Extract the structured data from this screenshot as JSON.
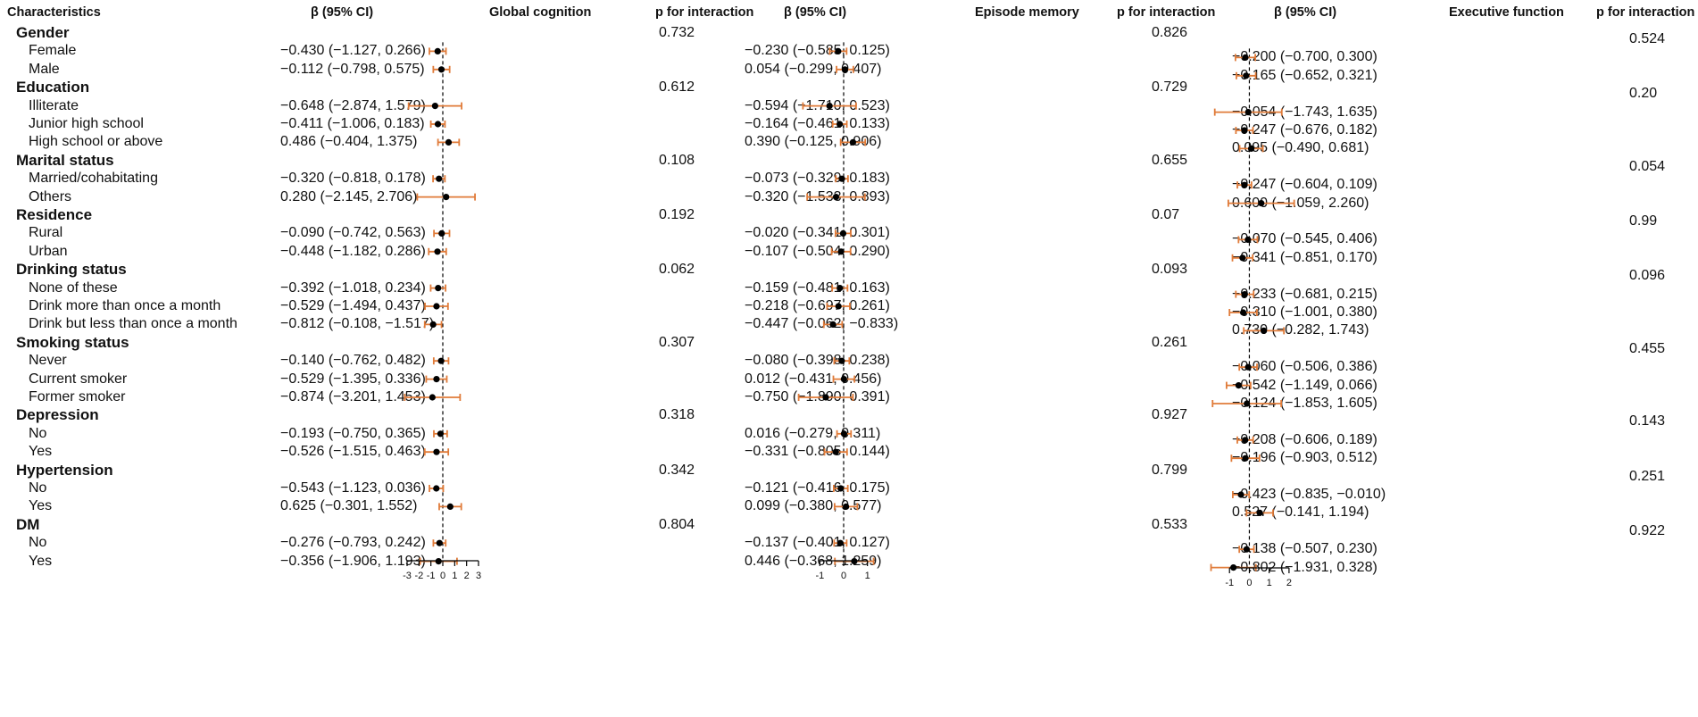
{
  "headers": {
    "characteristics": "Characteristics",
    "beta": "β (95% CI)",
    "p": "p for interaction",
    "panels": [
      "Global cognition",
      "Episode memory",
      "Executive function"
    ]
  },
  "rows": [
    {
      "label": "Gender",
      "type": "group"
    },
    {
      "label": "Female",
      "type": "item"
    },
    {
      "label": "Male",
      "type": "item"
    },
    {
      "label": "Education",
      "type": "group"
    },
    {
      "label": "Illiterate",
      "type": "item"
    },
    {
      "label": "Junior high school",
      "type": "item"
    },
    {
      "label": "High school or above",
      "type": "item"
    },
    {
      "label": "Marital status",
      "type": "group"
    },
    {
      "label": "Married/cohabitating",
      "type": "item"
    },
    {
      "label": "Others",
      "type": "item"
    },
    {
      "label": "Residence",
      "type": "group"
    },
    {
      "label": "Rural",
      "type": "item"
    },
    {
      "label": "Urban",
      "type": "item"
    },
    {
      "label": "Drinking status",
      "type": "group"
    },
    {
      "label": "None of these",
      "type": "item"
    },
    {
      "label": "Drink more than once a month",
      "type": "item"
    },
    {
      "label": "Drink but less than once a month",
      "type": "item"
    },
    {
      "label": "Smoking status",
      "type": "group"
    },
    {
      "label": "Never",
      "type": "item"
    },
    {
      "label": "Current smoker",
      "type": "item"
    },
    {
      "label": "Former smoker",
      "type": "item"
    },
    {
      "label": "Depression",
      "type": "group"
    },
    {
      "label": "No",
      "type": "item"
    },
    {
      "label": "Yes",
      "type": "item"
    },
    {
      "label": "Hypertension",
      "type": "group"
    },
    {
      "label": "No",
      "type": "item"
    },
    {
      "label": "Yes",
      "type": "item"
    },
    {
      "label": "DM",
      "type": "group"
    },
    {
      "label": "No",
      "type": "item"
    },
    {
      "label": "Yes",
      "type": "item"
    }
  ],
  "chart_data": [
    {
      "type": "forest",
      "title": "Global cognition",
      "xlim": [
        -3,
        3
      ],
      "ticks": [
        "-3",
        "-2",
        "-1",
        "0",
        "1",
        "2",
        "3"
      ],
      "reference_line": 0,
      "p_values": [
        "0.732",
        "0.612",
        "0.108",
        "0.192",
        "0.062",
        "0.307",
        "0.318",
        "0.342",
        "0.804"
      ],
      "points": [
        {
          "row": 1,
          "est": -0.43,
          "lo": -1.127,
          "hi": 0.266,
          "text": "−0.430 (−1.127, 0.266)"
        },
        {
          "row": 2,
          "est": -0.112,
          "lo": -0.798,
          "hi": 0.575,
          "text": "−0.112 (−0.798, 0.575)"
        },
        {
          "row": 4,
          "est": -0.648,
          "lo": -2.874,
          "hi": 1.579,
          "text": "−0.648 (−2.874, 1.579)"
        },
        {
          "row": 5,
          "est": -0.411,
          "lo": -1.006,
          "hi": 0.183,
          "text": "−0.411 (−1.006, 0.183)"
        },
        {
          "row": 6,
          "est": 0.486,
          "lo": -0.404,
          "hi": 1.375,
          "text": "0.486 (−0.404, 1.375)"
        },
        {
          "row": 8,
          "est": -0.32,
          "lo": -0.818,
          "hi": 0.178,
          "text": "−0.320 (−0.818, 0.178)"
        },
        {
          "row": 9,
          "est": 0.28,
          "lo": -2.145,
          "hi": 2.706,
          "text": "0.280 (−2.145, 2.706)"
        },
        {
          "row": 11,
          "est": -0.09,
          "lo": -0.742,
          "hi": 0.563,
          "text": "−0.090 (−0.742, 0.563)"
        },
        {
          "row": 12,
          "est": -0.448,
          "lo": -1.182,
          "hi": 0.286,
          "text": "−0.448 (−1.182, 0.286)"
        },
        {
          "row": 14,
          "est": -0.392,
          "lo": -1.018,
          "hi": 0.234,
          "text": "−0.392 (−1.018, 0.234)"
        },
        {
          "row": 15,
          "est": -0.529,
          "lo": -1.494,
          "hi": 0.437,
          "text": "−0.529 (−1.494, 0.437)"
        },
        {
          "row": 16,
          "est": -0.812,
          "lo": -1.517,
          "hi": -0.108,
          "text": "−0.812 (−0.108, −1.517)"
        },
        {
          "row": 18,
          "est": -0.14,
          "lo": -0.762,
          "hi": 0.482,
          "text": "−0.140 (−0.762, 0.482)"
        },
        {
          "row": 19,
          "est": -0.529,
          "lo": -1.395,
          "hi": 0.336,
          "text": "−0.529 (−1.395, 0.336)"
        },
        {
          "row": 20,
          "est": -0.874,
          "lo": -3.201,
          "hi": 1.453,
          "text": "−0.874 (−3.201, 1.453)"
        },
        {
          "row": 22,
          "est": -0.193,
          "lo": -0.75,
          "hi": 0.365,
          "text": "−0.193 (−0.750, 0.365)"
        },
        {
          "row": 23,
          "est": -0.526,
          "lo": -1.515,
          "hi": 0.463,
          "text": "−0.526 (−1.515, 0.463)"
        },
        {
          "row": 25,
          "est": -0.543,
          "lo": -1.123,
          "hi": 0.036,
          "text": "−0.543 (−1.123, 0.036)"
        },
        {
          "row": 26,
          "est": 0.625,
          "lo": -0.301,
          "hi": 1.552,
          "text": "0.625 (−0.301, 1.552)"
        },
        {
          "row": 28,
          "est": -0.276,
          "lo": -0.793,
          "hi": 0.242,
          "text": "−0.276 (−0.793, 0.242)"
        },
        {
          "row": 29,
          "est": -0.356,
          "lo": -1.906,
          "hi": 1.193,
          "text": "−0.356 (−1.906, 1.193)"
        }
      ]
    },
    {
      "type": "forest",
      "title": "Episode memory",
      "xlim": [
        -1.5,
        1.5
      ],
      "ticks": [
        "-1",
        "0",
        "1"
      ],
      "reference_line": 0,
      "p_values": [
        "0.826",
        "0.729",
        "0.655",
        "0.07",
        "0.093",
        "0.261",
        "0.927",
        "0.799",
        "0.533"
      ],
      "points": [
        {
          "row": 1,
          "est": -0.23,
          "lo": -0.585,
          "hi": 0.125,
          "text": "−0.230 (−0.585, 0.125)"
        },
        {
          "row": 2,
          "est": 0.054,
          "lo": -0.299,
          "hi": 0.407,
          "text": "0.054 (−0.299, 0.407)"
        },
        {
          "row": 4,
          "est": -0.594,
          "lo": -1.71,
          "hi": 0.523,
          "text": "−0.594 (−1.710, 0.523)"
        },
        {
          "row": 5,
          "est": -0.164,
          "lo": -0.461,
          "hi": 0.133,
          "text": "−0.164 (−0.461, 0.133)"
        },
        {
          "row": 6,
          "est": 0.39,
          "lo": -0.125,
          "hi": 0.906,
          "text": "0.390 (−0.125, 0.906)"
        },
        {
          "row": 8,
          "est": -0.073,
          "lo": -0.329,
          "hi": 0.183,
          "text": "−0.073 (−0.329, 0.183)"
        },
        {
          "row": 9,
          "est": -0.32,
          "lo": -1.533,
          "hi": 0.893,
          "text": "−0.320 (−1.533, 0.893)"
        },
        {
          "row": 11,
          "est": -0.02,
          "lo": -0.341,
          "hi": 0.301,
          "text": "−0.020 (−0.341, 0.301)"
        },
        {
          "row": 12,
          "est": -0.107,
          "lo": -0.504,
          "hi": 0.29,
          "text": "−0.107 (−0.504, 0.290)"
        },
        {
          "row": 14,
          "est": -0.159,
          "lo": -0.481,
          "hi": 0.163,
          "text": "−0.159 (−0.481, 0.163)"
        },
        {
          "row": 15,
          "est": -0.218,
          "lo": -0.697,
          "hi": 0.261,
          "text": "−0.218 (−0.697, 0.261)"
        },
        {
          "row": 16,
          "est": -0.447,
          "lo": -0.833,
          "hi": -0.062,
          "text": "−0.447 (−0.062, −0.833)"
        },
        {
          "row": 18,
          "est": -0.08,
          "lo": -0.398,
          "hi": 0.238,
          "text": "−0.080 (−0.398, 0.238)"
        },
        {
          "row": 19,
          "est": 0.012,
          "lo": -0.431,
          "hi": 0.456,
          "text": "0.012 (−0.431, 0.456)"
        },
        {
          "row": 20,
          "est": -0.75,
          "lo": -1.89,
          "hi": 0.391,
          "text": "−0.750 (−1.890, 0.391)"
        },
        {
          "row": 22,
          "est": 0.016,
          "lo": -0.279,
          "hi": 0.311,
          "text": "0.016 (−0.279, 0.311)"
        },
        {
          "row": 23,
          "est": -0.331,
          "lo": -0.805,
          "hi": 0.144,
          "text": "−0.331 (−0.805, 0.144)"
        },
        {
          "row": 25,
          "est": -0.121,
          "lo": -0.416,
          "hi": 0.175,
          "text": "−0.121 (−0.416, 0.175)"
        },
        {
          "row": 26,
          "est": 0.099,
          "lo": -0.38,
          "hi": 0.577,
          "text": "0.099 (−0.380, 0.577)"
        },
        {
          "row": 28,
          "est": -0.137,
          "lo": -0.401,
          "hi": 0.127,
          "text": "−0.137 (−0.401, 0.127)"
        },
        {
          "row": 29,
          "est": 0.446,
          "lo": -0.368,
          "hi": 1.259,
          "text": "0.446 (−0.368, 1.259)"
        }
      ]
    },
    {
      "type": "forest",
      "title": "Executive function",
      "xlim": [
        -2,
        2.5
      ],
      "ticks": [
        "-1",
        "0",
        "1",
        "2"
      ],
      "reference_line": 0,
      "p_values": [
        "0.524",
        "0.20",
        "0.054",
        "0.99",
        "0.096",
        "0.455",
        "0.143",
        "0.251",
        "0.922"
      ],
      "points": [
        {
          "row": 1,
          "est": -0.2,
          "lo": -0.7,
          "hi": 0.3,
          "text": "−0.200 (−0.700, 0.300)"
        },
        {
          "row": 2,
          "est": -0.165,
          "lo": -0.652,
          "hi": 0.321,
          "text": "−0.165 (−0.652, 0.321)"
        },
        {
          "row": 4,
          "est": -0.054,
          "lo": -1.743,
          "hi": 1.635,
          "text": "−0.054 (−1.743, 1.635)"
        },
        {
          "row": 5,
          "est": -0.247,
          "lo": -0.676,
          "hi": 0.182,
          "text": "−0.247 (−0.676, 0.182)"
        },
        {
          "row": 6,
          "est": 0.095,
          "lo": -0.49,
          "hi": 0.681,
          "text": "0.095 (−0.490, 0.681)"
        },
        {
          "row": 8,
          "est": -0.247,
          "lo": -0.604,
          "hi": 0.109,
          "text": "−0.247 (−0.604, 0.109)"
        },
        {
          "row": 9,
          "est": 0.6,
          "lo": -1.059,
          "hi": 2.26,
          "text": "0.600 (−1.059, 2.260)"
        },
        {
          "row": 11,
          "est": -0.07,
          "lo": -0.545,
          "hi": 0.406,
          "text": "−0.070 (−0.545, 0.406)"
        },
        {
          "row": 12,
          "est": -0.341,
          "lo": -0.851,
          "hi": 0.17,
          "text": "−0.341 (−0.851, 0.170)"
        },
        {
          "row": 14,
          "est": -0.233,
          "lo": -0.681,
          "hi": 0.215,
          "text": "−0.233 (−0.681, 0.215)"
        },
        {
          "row": 15,
          "est": -0.31,
          "lo": -1.001,
          "hi": 0.38,
          "text": "−0.310 (−1.001, 0.380)"
        },
        {
          "row": 16,
          "est": 0.73,
          "lo": -0.282,
          "hi": 1.743,
          "text": "0.730 (−0.282, 1.743)"
        },
        {
          "row": 18,
          "est": -0.06,
          "lo": -0.506,
          "hi": 0.386,
          "text": "−0.060 (−0.506, 0.386)"
        },
        {
          "row": 19,
          "est": -0.542,
          "lo": -1.149,
          "hi": 0.066,
          "text": "−0.542 (−1.149, 0.066)"
        },
        {
          "row": 20,
          "est": -0.124,
          "lo": -1.853,
          "hi": 1.605,
          "text": "−0.124 (−1.853, 1.605)"
        },
        {
          "row": 22,
          "est": -0.208,
          "lo": -0.606,
          "hi": 0.189,
          "text": "−0.208 (−0.606, 0.189)"
        },
        {
          "row": 23,
          "est": -0.196,
          "lo": -0.903,
          "hi": 0.512,
          "text": "−0.196 (−0.903, 0.512)"
        },
        {
          "row": 25,
          "est": -0.423,
          "lo": -0.835,
          "hi": -0.01,
          "text": "−0.423 (−0.835, −0.010)"
        },
        {
          "row": 26,
          "est": 0.527,
          "lo": -0.141,
          "hi": 1.194,
          "text": "0.527 (−0.141, 1.194)"
        },
        {
          "row": 28,
          "est": -0.138,
          "lo": -0.507,
          "hi": 0.23,
          "text": "−0.138 (−0.507, 0.230)"
        },
        {
          "row": 29,
          "est": -0.802,
          "lo": -1.931,
          "hi": 0.328,
          "text": "−0.802 (−1.931, 0.328)"
        }
      ]
    }
  ],
  "colors": {
    "ci": "#e07b39",
    "point": "#000000",
    "axis": "#000000"
  }
}
